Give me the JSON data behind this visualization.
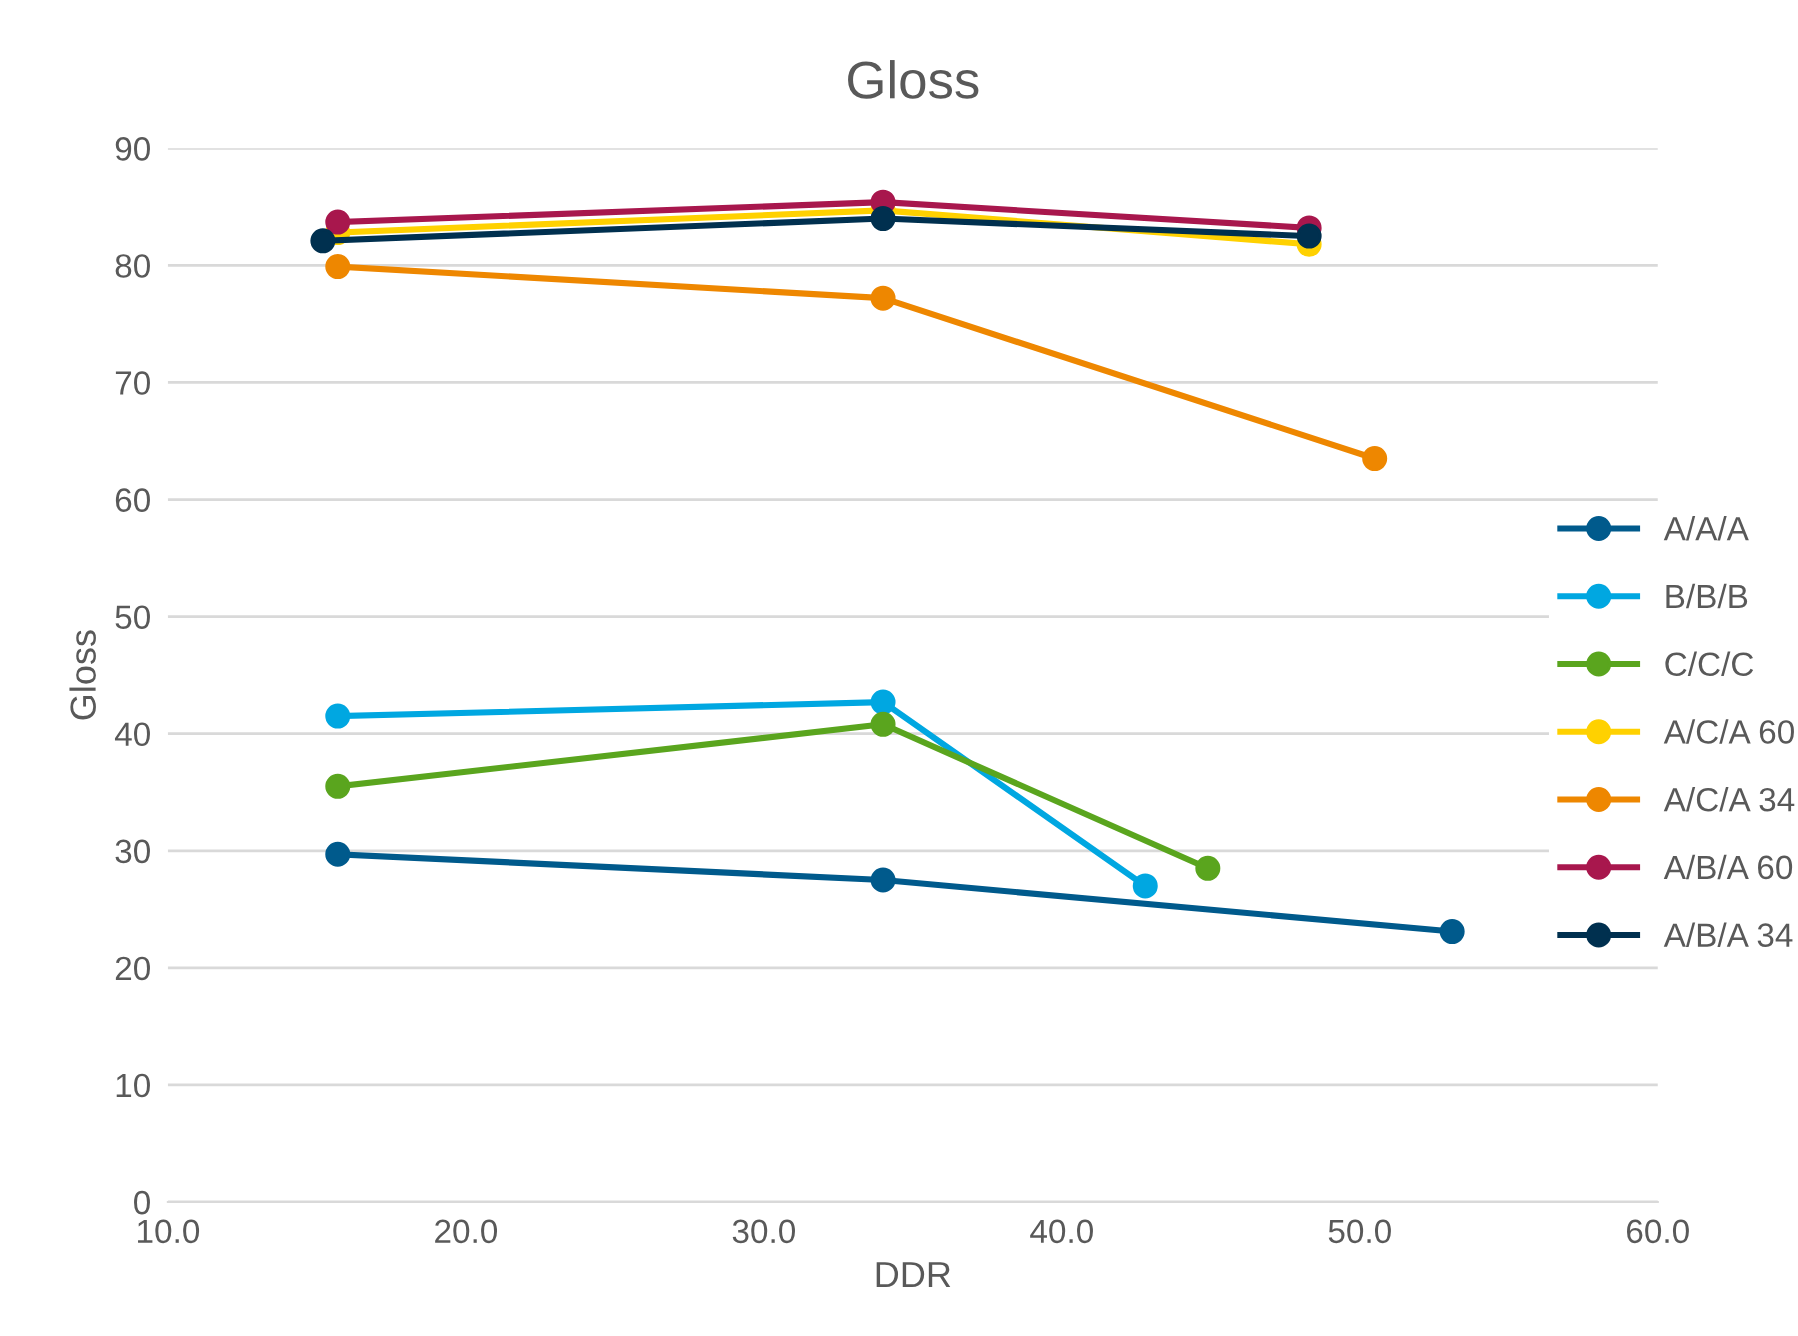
{
  "chart_data": {
    "type": "line",
    "title": "Gloss",
    "xlabel": "DDR",
    "ylabel": "Gloss",
    "xlim": [
      10,
      60
    ],
    "xticks": [
      {
        "value": 10,
        "label": "10.0"
      },
      {
        "value": 20,
        "label": "20.0"
      },
      {
        "value": 30,
        "label": "30.0"
      },
      {
        "value": 40,
        "label": "40.0"
      },
      {
        "value": 50,
        "label": "50.0"
      },
      {
        "value": 60,
        "label": "60.0"
      }
    ],
    "ylim": [
      0,
      90
    ],
    "yticks": [
      0,
      10,
      20,
      30,
      40,
      50,
      60,
      70,
      80,
      90
    ],
    "grid": "y",
    "legend": "right",
    "marker": "circle",
    "line_style": "solid",
    "series": [
      {
        "name": "A/A/A",
        "color": "#005a8c",
        "x": [
          15.7,
          34.0,
          53.1
        ],
        "values": [
          29.7,
          27.5,
          23.1
        ]
      },
      {
        "name": "B/B/B",
        "color": "#00a7e1",
        "x": [
          15.7,
          34.0,
          42.8
        ],
        "values": [
          41.5,
          42.7,
          27.0
        ]
      },
      {
        "name": "C/C/C",
        "color": "#5aa51e",
        "x": [
          15.7,
          34.0,
          44.9
        ],
        "values": [
          35.5,
          40.8,
          28.5
        ]
      },
      {
        "name": "A/C/A 60",
        "color": "#ffd100",
        "x": [
          15.7,
          34.0,
          48.3
        ],
        "values": [
          82.8,
          84.7,
          81.8
        ]
      },
      {
        "name": "A/C/A 34",
        "color": "#ee8700",
        "x": [
          15.7,
          34.0,
          50.5
        ],
        "values": [
          79.9,
          77.2,
          63.5
        ]
      },
      {
        "name": "A/B/A 60",
        "color": "#a8174d",
        "x": [
          15.7,
          34.0,
          48.3
        ],
        "values": [
          83.7,
          85.4,
          83.2
        ]
      },
      {
        "name": "A/B/A 34",
        "color": "#00304f",
        "x": [
          15.2,
          34.0,
          48.3
        ],
        "values": [
          82.1,
          84.0,
          82.5
        ]
      }
    ]
  }
}
